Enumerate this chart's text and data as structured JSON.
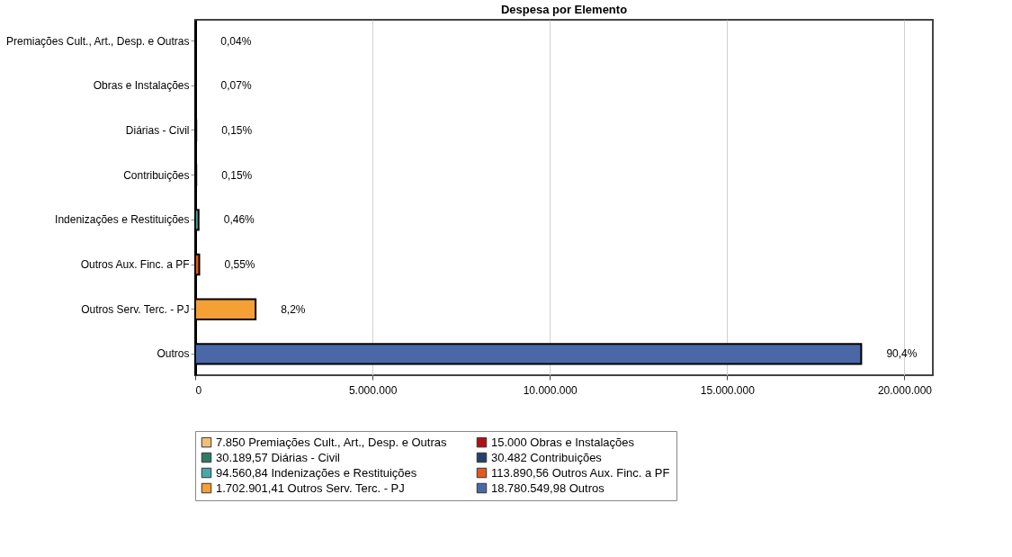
{
  "chart_data": {
    "type": "bar",
    "title": "Despesa por Elemento",
    "orientation": "horizontal",
    "categories": [
      "Premiações Cult., Art., Desp. e Outras",
      "Obras e Instalações",
      "Diárias - Civil",
      "Contribuições",
      "Indenizações e Restituições",
      "Outros Aux. Finc. a PF",
      "Outros Serv. Terc. - PJ",
      "Outros"
    ],
    "series": [
      {
        "name": "7.850 Premiações Cult., Art., Desp. e Outras",
        "color": "#f0c078",
        "values": [
          7850,
          null,
          null,
          null,
          null,
          null,
          null,
          null
        ]
      },
      {
        "name": "15.000 Obras e Instalações",
        "color": "#b01018",
        "values": [
          null,
          15000,
          null,
          null,
          null,
          null,
          null,
          null
        ]
      },
      {
        "name": "30.189,57 Diárias - Civil",
        "color": "#2e7a68",
        "values": [
          null,
          null,
          30189.57,
          null,
          null,
          null,
          null,
          null
        ]
      },
      {
        "name": "30.482 Contribuições",
        "color": "#283f6e",
        "values": [
          null,
          null,
          null,
          30482,
          null,
          null,
          null,
          null
        ]
      },
      {
        "name": "94.560,84 Indenizações e Restituições",
        "color": "#48a8a8",
        "values": [
          null,
          null,
          null,
          null,
          94560.84,
          null,
          null,
          null
        ]
      },
      {
        "name": "113.890,56 Outros Aux. Finc. a PF",
        "color": "#e05a20",
        "values": [
          null,
          null,
          null,
          null,
          null,
          113890.56,
          null,
          null
        ]
      },
      {
        "name": "1.702.901,41 Outros Serv. Terc. - PJ",
        "color": "#f4a035",
        "values": [
          null,
          null,
          null,
          null,
          null,
          null,
          1702901.41,
          null
        ]
      },
      {
        "name": "18.780.549,98 Outros",
        "color": "#4a68a8",
        "values": [
          null,
          null,
          null,
          null,
          null,
          null,
          null,
          18780549.98
        ]
      }
    ],
    "annotations": [
      {
        "text": "0,04%",
        "x": 7850,
        "y": "Premiações Cult., Art., Desp. e Outras"
      },
      {
        "text": "0,07%",
        "x": 15000,
        "y": "Obras e Instalações"
      },
      {
        "text": "0,15%",
        "x": 30189.57,
        "y": "Diárias - Civil"
      },
      {
        "text": "0,15%",
        "x": 30482,
        "y": "Contribuições"
      },
      {
        "text": "0,46%",
        "x": 94560.84,
        "y": "Indenizações e Restituições"
      },
      {
        "text": "0,55%",
        "x": 113890.56,
        "y": "Outros Aux. Finc. a PF"
      },
      {
        "text": "8,2%",
        "x": 1702901.41,
        "y": "Outros Serv. Terc. - PJ"
      },
      {
        "text": "90,4%",
        "x": 18780549.98,
        "y": "Outros"
      }
    ],
    "xlim": [
      0,
      20800000
    ],
    "xticks": [
      {
        "value": 0,
        "label": "0"
      },
      {
        "value": 5000000,
        "label": "5.000.000"
      },
      {
        "value": 10000000,
        "label": "10.000.000"
      },
      {
        "value": 15000000,
        "label": "15.000.000"
      },
      {
        "value": 20000000,
        "label": "20.000.000"
      }
    ],
    "grid": "x",
    "legend": "bottom"
  }
}
